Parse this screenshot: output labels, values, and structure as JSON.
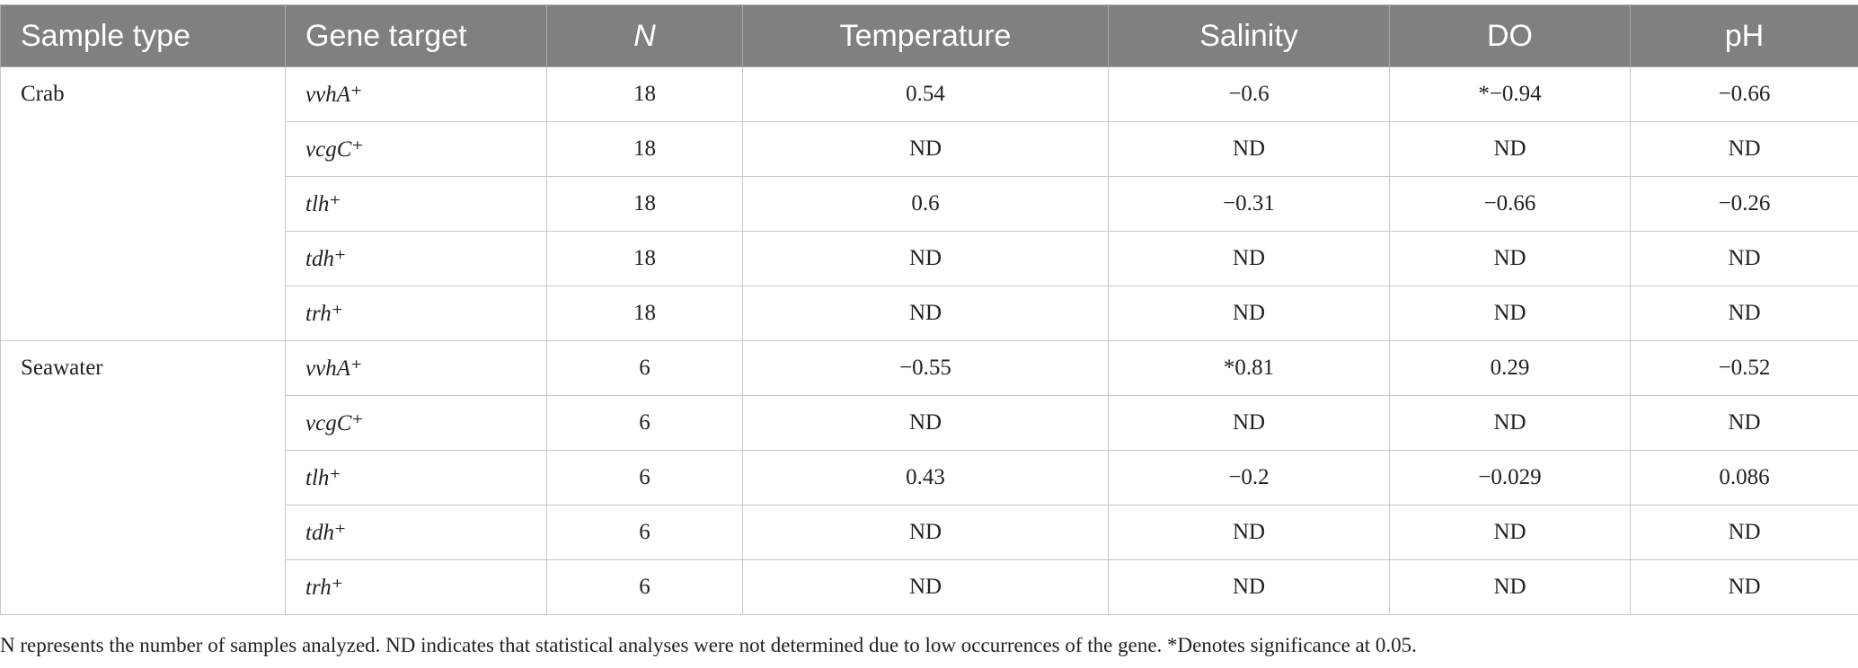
{
  "table": {
    "header": [
      "Sample type",
      "Gene target",
      "N",
      "Temperature",
      "Salinity",
      "DO",
      "pH"
    ],
    "groups": [
      {
        "sample_type": "Crab",
        "rows": [
          [
            "vvhA⁺",
            18,
            "0.54",
            "−0.6",
            "*−0.94",
            "−0.66"
          ],
          [
            "vcgC⁺",
            18,
            "ND",
            "ND",
            "ND",
            "ND"
          ],
          [
            "tlh⁺",
            18,
            "0.6",
            "−0.31",
            "−0.66",
            "−0.26"
          ],
          [
            "tdh⁺",
            18,
            "ND",
            "ND",
            "ND",
            "ND"
          ],
          [
            "trh⁺",
            18,
            "ND",
            "ND",
            "ND",
            "ND"
          ]
        ]
      },
      {
        "sample_type": "Seawater",
        "rows": [
          [
            "vvhA⁺",
            6,
            "−0.55",
            "*0.81",
            "0.29",
            "−0.52"
          ],
          [
            "vcgC⁺",
            6,
            "ND",
            "ND",
            "ND",
            "ND"
          ],
          [
            "tlh⁺",
            6,
            "0.43",
            "−0.2",
            "−0.029",
            "0.086"
          ],
          [
            "tdh⁺",
            6,
            "ND",
            "ND",
            "ND",
            "ND"
          ],
          [
            "trh⁺",
            6,
            "ND",
            "ND",
            "ND",
            "ND"
          ]
        ]
      }
    ]
  },
  "note": "N represents the number of samples analyzed. ND indicates that statistical analyses were not determined due to low occurrences of the gene. *Denotes significance at 0.05."
}
